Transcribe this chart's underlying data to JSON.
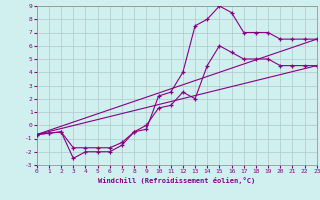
{
  "xlabel": "Windchill (Refroidissement éolien,°C)",
  "bg_color": "#cff0ee",
  "grid_color": "#b0c8c8",
  "line_color": "#880088",
  "xlim": [
    0,
    23
  ],
  "ylim": [
    -3,
    9
  ],
  "xticks": [
    0,
    1,
    2,
    3,
    4,
    5,
    6,
    7,
    8,
    9,
    10,
    11,
    12,
    13,
    14,
    15,
    16,
    17,
    18,
    19,
    20,
    21,
    22,
    23
  ],
  "yticks": [
    -3,
    -2,
    -1,
    0,
    1,
    2,
    3,
    4,
    5,
    6,
    7,
    8,
    9
  ],
  "series1_x": [
    0,
    1,
    2,
    3,
    4,
    5,
    6,
    7,
    8,
    9,
    10,
    11,
    12,
    13,
    14,
    15,
    16,
    17,
    18,
    19,
    20,
    21,
    22,
    23
  ],
  "series1_y": [
    -0.7,
    -0.6,
    -0.5,
    -2.5,
    -2.0,
    -2.0,
    -2.0,
    -1.5,
    -0.5,
    -0.3,
    2.2,
    2.5,
    4.0,
    7.5,
    8.0,
    9.0,
    8.5,
    7.0,
    7.0,
    7.0,
    6.5,
    6.5,
    6.5,
    6.5
  ],
  "series2_x": [
    0,
    1,
    2,
    3,
    4,
    5,
    6,
    7,
    8,
    9,
    10,
    11,
    12,
    13,
    14,
    15,
    16,
    17,
    18,
    19,
    20,
    21,
    22,
    23
  ],
  "series2_y": [
    -0.7,
    -0.6,
    -0.5,
    -1.7,
    -1.7,
    -1.7,
    -1.7,
    -1.3,
    -0.5,
    0.0,
    1.3,
    1.5,
    2.5,
    2.0,
    4.5,
    6.0,
    5.5,
    5.0,
    5.0,
    5.0,
    4.5,
    4.5,
    4.5,
    4.5
  ],
  "series3_x": [
    0,
    23
  ],
  "series3_y": [
    -0.7,
    6.5
  ],
  "series4_x": [
    0,
    23
  ],
  "series4_y": [
    -0.7,
    4.5
  ],
  "tick_color": "#880088",
  "tick_fontsize": 4.5,
  "xlabel_fontsize": 5.0
}
